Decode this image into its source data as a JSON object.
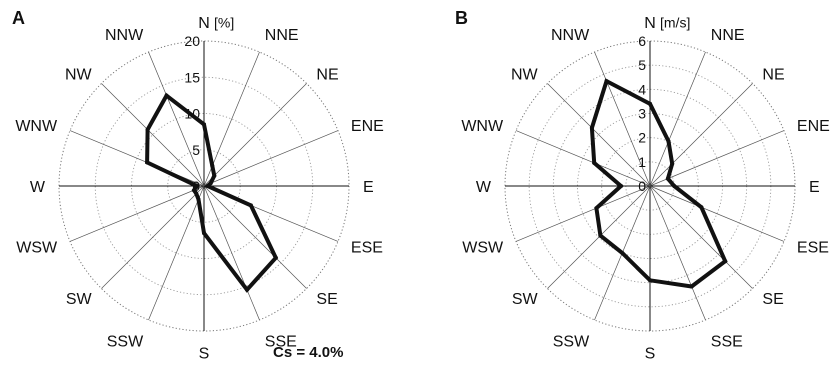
{
  "chart_data": [
    {
      "type": "radar",
      "panel_label": "A",
      "unit": "[%]",
      "directions": [
        "N",
        "NNE",
        "NE",
        "ENE",
        "E",
        "ESE",
        "SE",
        "SSE",
        "S",
        "SSW",
        "SW",
        "WSW",
        "W",
        "WNW",
        "NW",
        "NNW"
      ],
      "rings": [
        0,
        5,
        10,
        15,
        20
      ],
      "rlim": [
        0,
        20
      ],
      "values": [
        8.5,
        3.0,
        2.0,
        1.0,
        0.5,
        7.0,
        14.0,
        15.5,
        6.5,
        2.0,
        1.5,
        1.5,
        1.0,
        8.5,
        11.0,
        13.5
      ],
      "annotation": "Cs = 4.0%"
    },
    {
      "type": "radar",
      "panel_label": "B",
      "unit": "[m/s]",
      "directions": [
        "N",
        "NNE",
        "NE",
        "ENE",
        "E",
        "ESE",
        "SE",
        "SSE",
        "S",
        "SSW",
        "SW",
        "WSW",
        "W",
        "WNW",
        "NW",
        "NNW"
      ],
      "rings": [
        0,
        1,
        2,
        3,
        4,
        5,
        6
      ],
      "rlim": [
        0,
        6
      ],
      "values": [
        3.4,
        2.0,
        1.3,
        0.8,
        1.0,
        2.3,
        4.4,
        4.5,
        3.9,
        3.0,
        2.9,
        2.4,
        1.2,
        2.5,
        3.4,
        4.7
      ],
      "annotation": ""
    }
  ]
}
